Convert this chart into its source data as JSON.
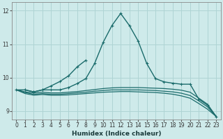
{
  "xlabel": "Humidex (Indice chaleur)",
  "xlim": [
    -0.5,
    23.5
  ],
  "ylim": [
    8.75,
    12.25
  ],
  "yticks": [
    9,
    10,
    11,
    12
  ],
  "xticks": [
    0,
    1,
    2,
    3,
    4,
    5,
    6,
    7,
    8,
    9,
    10,
    11,
    12,
    13,
    14,
    15,
    16,
    17,
    18,
    19,
    20,
    21,
    22,
    23
  ],
  "bg_color": "#ceeaea",
  "line_color": "#1a6b6b",
  "grid_color": "#afd4d4",
  "lines": [
    {
      "x": [
        0,
        1,
        2,
        3,
        4,
        5,
        6,
        7,
        8,
        9,
        10,
        11,
        12,
        13,
        14,
        15,
        16,
        17,
        18,
        19,
        20,
        21,
        22,
        23
      ],
      "y": [
        9.63,
        9.63,
        9.57,
        9.63,
        9.63,
        9.63,
        9.7,
        9.82,
        9.97,
        10.42,
        11.06,
        11.56,
        11.92,
        11.56,
        11.1,
        10.42,
        9.97,
        9.87,
        9.83,
        9.8,
        9.8,
        9.35,
        9.17,
        8.83
      ],
      "marker": true,
      "lw": 1.0
    },
    {
      "x": [
        1,
        2,
        3,
        4,
        5,
        6,
        7,
        8
      ],
      "y": [
        9.63,
        9.57,
        9.63,
        9.75,
        9.88,
        10.05,
        10.32,
        10.52
      ],
      "marker": true,
      "lw": 1.0
    },
    {
      "x": [
        0,
        1,
        2,
        3,
        4,
        5,
        6,
        7,
        8,
        9,
        10,
        11,
        12,
        13,
        14,
        15,
        16,
        17,
        18,
        19,
        20,
        21,
        22,
        23
      ],
      "y": [
        9.63,
        9.57,
        9.54,
        9.56,
        9.54,
        9.54,
        9.56,
        9.58,
        9.61,
        9.64,
        9.67,
        9.69,
        9.7,
        9.7,
        9.7,
        9.69,
        9.68,
        9.67,
        9.65,
        9.62,
        9.56,
        9.38,
        9.2,
        8.83
      ],
      "marker": false,
      "lw": 0.9
    },
    {
      "x": [
        0,
        1,
        2,
        3,
        4,
        5,
        6,
        7,
        8,
        9,
        10,
        11,
        12,
        13,
        14,
        15,
        16,
        17,
        18,
        19,
        20,
        21,
        22,
        23
      ],
      "y": [
        9.63,
        9.55,
        9.5,
        9.52,
        9.5,
        9.5,
        9.52,
        9.54,
        9.56,
        9.59,
        9.61,
        9.63,
        9.63,
        9.63,
        9.63,
        9.62,
        9.61,
        9.59,
        9.57,
        9.53,
        9.46,
        9.3,
        9.12,
        8.83
      ],
      "marker": false,
      "lw": 0.9
    },
    {
      "x": [
        0,
        1,
        2,
        3,
        4,
        5,
        6,
        7,
        8,
        9,
        10,
        11,
        12,
        13,
        14,
        15,
        16,
        17,
        18,
        19,
        20,
        21,
        22,
        23
      ],
      "y": [
        9.63,
        9.52,
        9.47,
        9.49,
        9.47,
        9.47,
        9.48,
        9.5,
        9.52,
        9.54,
        9.56,
        9.57,
        9.58,
        9.58,
        9.57,
        9.56,
        9.55,
        9.53,
        9.5,
        9.45,
        9.38,
        9.22,
        9.05,
        8.83
      ],
      "marker": false,
      "lw": 0.9
    }
  ]
}
